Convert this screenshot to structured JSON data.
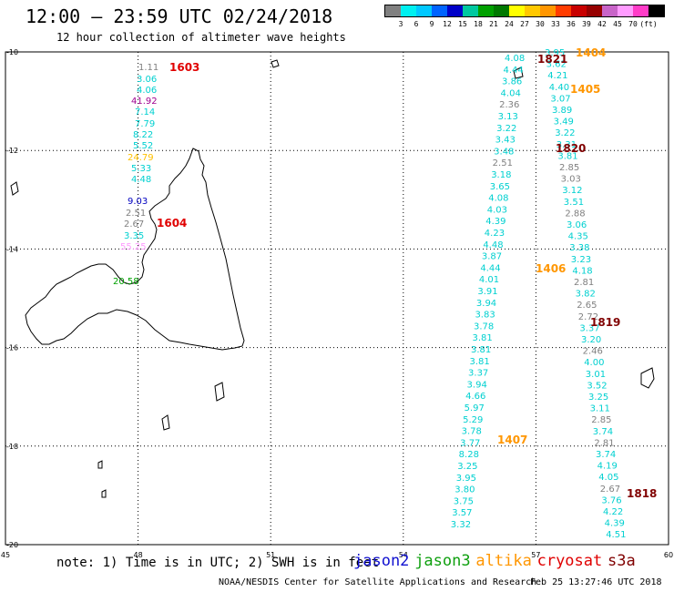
{
  "header": {
    "title": "12:00 – 23:59 UTC 02/24/2018",
    "subtitle": "12 hour collection of altimeter wave heights"
  },
  "colorbar": {
    "colors": [
      "#808080",
      "#00f0f0",
      "#00c8ff",
      "#0064ff",
      "#0000c8",
      "#00c8a0",
      "#00a000",
      "#007800",
      "#ffff00",
      "#ffc800",
      "#ff9600",
      "#ff3c00",
      "#c80000",
      "#960000",
      "#c864c8",
      "#ff9bff",
      "#ff3cc8",
      "#000000"
    ],
    "labels": [
      "3",
      "6",
      "9",
      "12",
      "15",
      "18",
      "21",
      "24",
      "27",
      "30",
      "33",
      "36",
      "39",
      "42",
      "45",
      "70",
      "(ft)"
    ]
  },
  "map": {
    "lon_range": [
      45,
      60
    ],
    "lat_range": [
      -20,
      -10
    ],
    "lat_ticks": [
      "-10",
      "-12",
      "-14",
      "-16",
      "-18",
      "-20"
    ],
    "lon_ticks": [
      "45",
      "48",
      "51",
      "54",
      "57",
      "60"
    ],
    "passes": [
      {
        "label": "1603",
        "color": "#e00000"
      },
      {
        "label": "1604",
        "color": "#e00000"
      },
      {
        "label": "1821",
        "color": "#800000"
      },
      {
        "label": "1404",
        "color": "#ff9600"
      },
      {
        "label": "1405",
        "color": "#ff9600"
      },
      {
        "label": "1820",
        "color": "#800000"
      },
      {
        "label": "1406",
        "color": "#ff9600"
      },
      {
        "label": "1819",
        "color": "#800000"
      },
      {
        "label": "1407",
        "color": "#ff9600"
      },
      {
        "label": "1818",
        "color": "#800000"
      }
    ],
    "swh_west": [
      "1.11",
      "3.06",
      "4.06",
      "41.92",
      "7.14",
      "7.79",
      "8.22",
      "5.52",
      "24.79",
      "5.33",
      "4.48",
      "9.03",
      "2.51",
      "2.67",
      "3.35",
      "55.25",
      "20.58"
    ],
    "swh_west_colors": [
      "#808080",
      "#00d0d0",
      "#00d0d0",
      "#a00090",
      "#00d0d0",
      "#00d0d0",
      "#00d0d0",
      "#00d0d0",
      "#ffc000",
      "#00d0d0",
      "#00d0d0",
      "#0000c0",
      "#808080",
      "#808080",
      "#00d0d0",
      "#ff9bff",
      "#00a000"
    ],
    "swh_east1": [
      "4.08",
      "4.44",
      "3.86",
      "4.04",
      "2.36",
      "3.13",
      "3.22",
      "3.43",
      "3.48",
      "2.51",
      "3.18",
      "3.65",
      "4.08",
      "4.03",
      "4.39",
      "4.23",
      "4.48",
      "3.87",
      "4.44",
      "4.01",
      "3.91",
      "3.94",
      "3.83",
      "3.78",
      "3.81",
      "3.81",
      "3.81",
      "3.37",
      "3.94",
      "4.66",
      "5.97",
      "5.29",
      "3.78",
      "3.77",
      "8.28",
      "3.25",
      "3.95",
      "3.80",
      "3.75",
      "3.57",
      "3.32"
    ],
    "swh_east1_colors": [
      "#00d0d0",
      "#00d0d0",
      "#00d0d0",
      "#00d0d0",
      "#808080",
      "#00d0d0",
      "#00d0d0",
      "#00d0d0",
      "#00d0d0",
      "#808080",
      "#00d0d0",
      "#00d0d0",
      "#00d0d0",
      "#00d0d0",
      "#00d0d0",
      "#00d0d0",
      "#00d0d0",
      "#00d0d0",
      "#00d0d0",
      "#00d0d0",
      "#00d0d0",
      "#00d0d0",
      "#00d0d0",
      "#00d0d0",
      "#00d0d0",
      "#00d0d0",
      "#00d0d0",
      "#00d0d0",
      "#00d0d0",
      "#00d0d0",
      "#00d0d0",
      "#00d0d0",
      "#00d0d0",
      "#00d0d0",
      "#00d0d0",
      "#00d0d0",
      "#00d0d0",
      "#00d0d0",
      "#00d0d0",
      "#00d0d0",
      "#00d0d0"
    ],
    "swh_east2": [
      "3.95",
      "3.62",
      "4.21",
      "4.40",
      "3.07",
      "3.89",
      "3.49",
      "3.22",
      "3.31",
      "3.81",
      "2.85",
      "3.03",
      "3.12",
      "3.51",
      "2.88",
      "3.06",
      "4.35",
      "3.38",
      "3.23",
      "4.18",
      "2.81",
      "3.82",
      "2.65",
      "2.72",
      "3.37",
      "3.20",
      "2.46",
      "4.00",
      "3.01",
      "3.52",
      "3.25",
      "3.11",
      "2.85",
      "3.74",
      "2.81",
      "3.74",
      "4.19",
      "4.05",
      "2.67",
      "3.76",
      "4.22",
      "4.39",
      "4.51"
    ],
    "swh_east2_colors": [
      "#00d0d0",
      "#00d0d0",
      "#00d0d0",
      "#00d0d0",
      "#00d0d0",
      "#00d0d0",
      "#00d0d0",
      "#00d0d0",
      "#00d0d0",
      "#00d0d0",
      "#808080",
      "#808080",
      "#00d0d0",
      "#00d0d0",
      "#808080",
      "#00d0d0",
      "#00d0d0",
      "#00d0d0",
      "#00d0d0",
      "#00d0d0",
      "#808080",
      "#00d0d0",
      "#808080",
      "#808080",
      "#00d0d0",
      "#00d0d0",
      "#808080",
      "#00d0d0",
      "#00d0d0",
      "#00d0d0",
      "#00d0d0",
      "#00d0d0",
      "#808080",
      "#00d0d0",
      "#808080",
      "#00d0d0",
      "#00d0d0",
      "#00d0d0",
      "#808080",
      "#00d0d0",
      "#00d0d0",
      "#00d0d0",
      "#00d0d0"
    ]
  },
  "footer": {
    "note": "note: 1) Time is in UTC; 2) SWH is in feet",
    "legend": [
      {
        "label": "jason2",
        "color": "#1010d0"
      },
      {
        "label": "jason3",
        "color": "#10a010"
      },
      {
        "label": "altika",
        "color": "#ff9600"
      },
      {
        "label": "cryosat",
        "color": "#e00000"
      },
      {
        "label": "s3a",
        "color": "#800000"
      }
    ],
    "credit": "NOAA/NESDIS Center for Satellite Applications and Research",
    "timestamp": "Feb 25 13:27:46 UTC 2018"
  }
}
